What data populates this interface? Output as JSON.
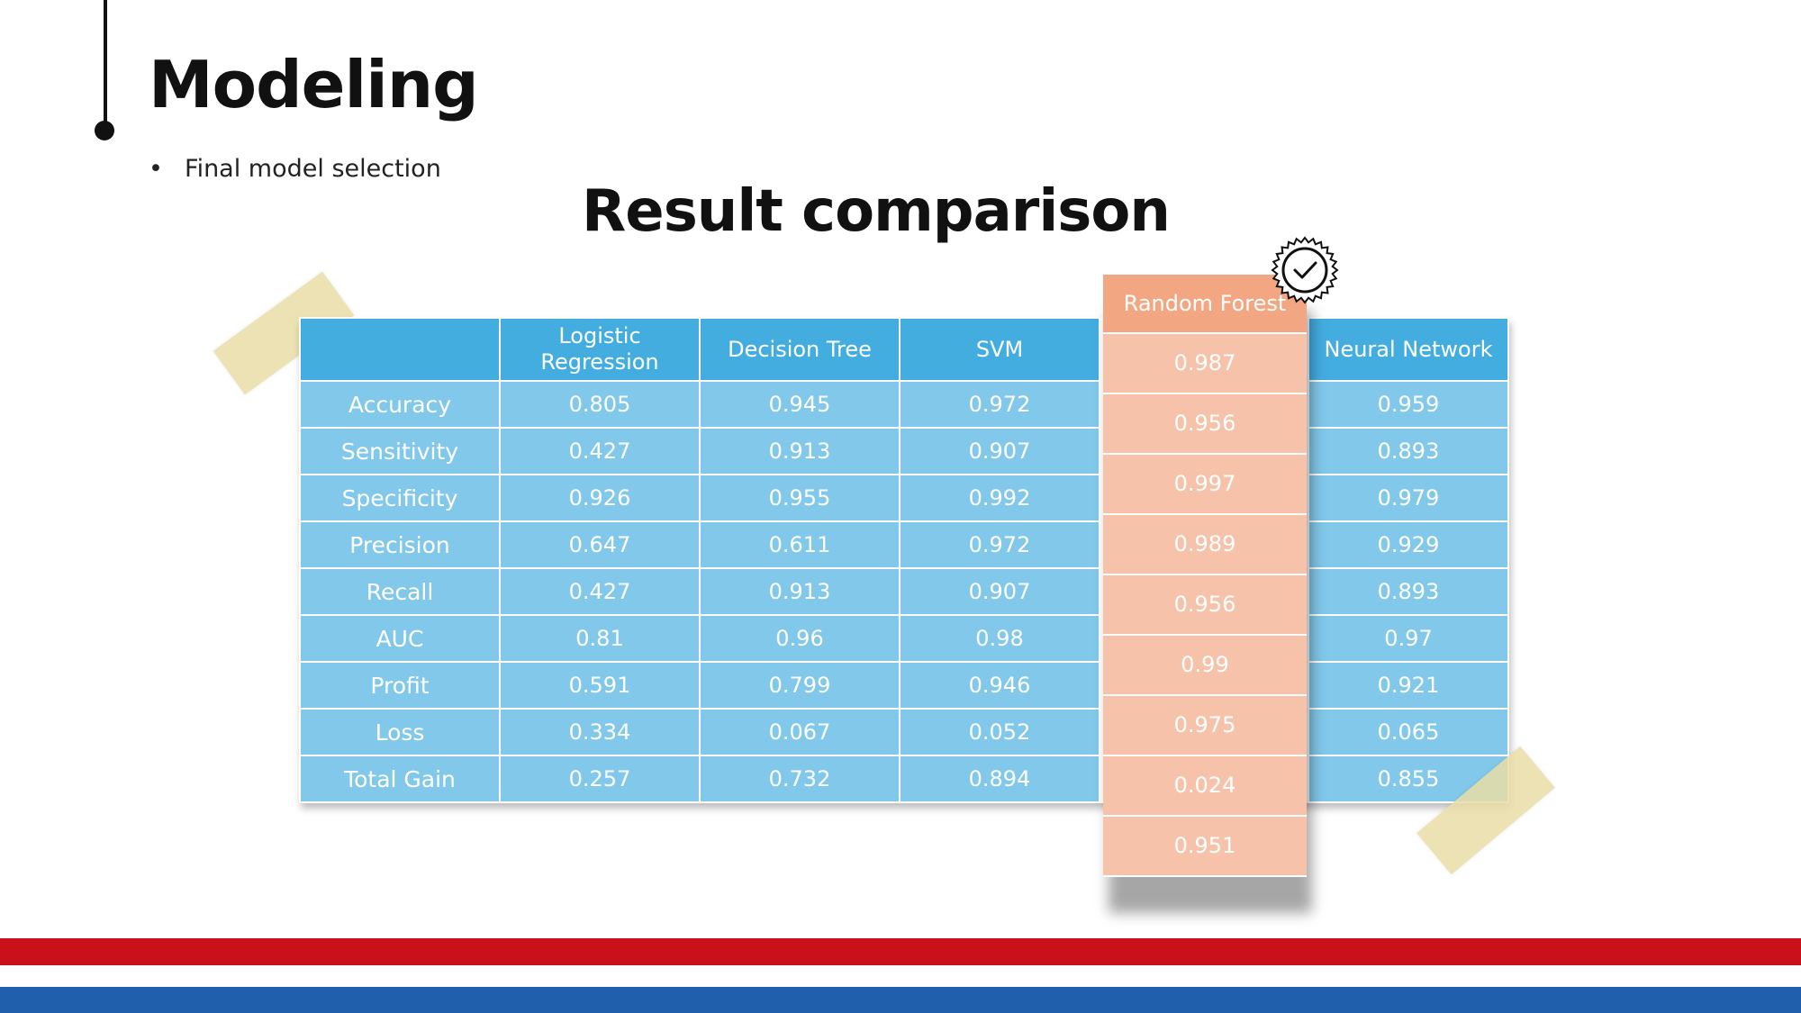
{
  "slide": {
    "title": "Modeling",
    "bullet_marker": "•",
    "bullet": "Final model selection",
    "subtitle": "Result comparison"
  },
  "table": {
    "columns": [
      "Logistic Regression",
      "Decision Tree",
      "SVM",
      "Random Forest",
      "Neural Network"
    ],
    "rows": [
      {
        "metric": "Accuracy",
        "values": [
          "0.805",
          "0.945",
          "0.972",
          "0.987",
          "0.959"
        ]
      },
      {
        "metric": "Sensitivity",
        "values": [
          "0.427",
          "0.913",
          "0.907",
          "0.956",
          "0.893"
        ]
      },
      {
        "metric": "Specificity",
        "values": [
          "0.926",
          "0.955",
          "0.992",
          "0.997",
          "0.979"
        ]
      },
      {
        "metric": "Precision",
        "values": [
          "0.647",
          "0.611",
          "0.972",
          "0.989",
          "0.929"
        ]
      },
      {
        "metric": "Recall",
        "values": [
          "0.427",
          "0.913",
          "0.907",
          "0.956",
          "0.893"
        ]
      },
      {
        "metric": "AUC",
        "values": [
          "0.81",
          "0.96",
          "0.98",
          "0.99",
          "0.97"
        ]
      },
      {
        "metric": "Profit",
        "values": [
          "0.591",
          "0.799",
          "0.946",
          "0.975",
          "0.921"
        ]
      },
      {
        "metric": "Loss",
        "values": [
          "0.334",
          "0.067",
          "0.052",
          "0.024",
          "0.065"
        ]
      },
      {
        "metric": "Total Gain",
        "values": [
          "0.257",
          "0.732",
          "0.894",
          "0.951",
          "0.855"
        ]
      }
    ],
    "highlighted_column": "Random Forest",
    "colors": {
      "header": "#43ade0",
      "cell": "#82c8ea",
      "highlight_header": "#f2a782",
      "highlight_cell": "#f6c3aa"
    }
  },
  "decorations": {
    "badge_icon": "check-badge-icon",
    "band_colors": [
      "#c8111a",
      "#1f5fac"
    ]
  }
}
